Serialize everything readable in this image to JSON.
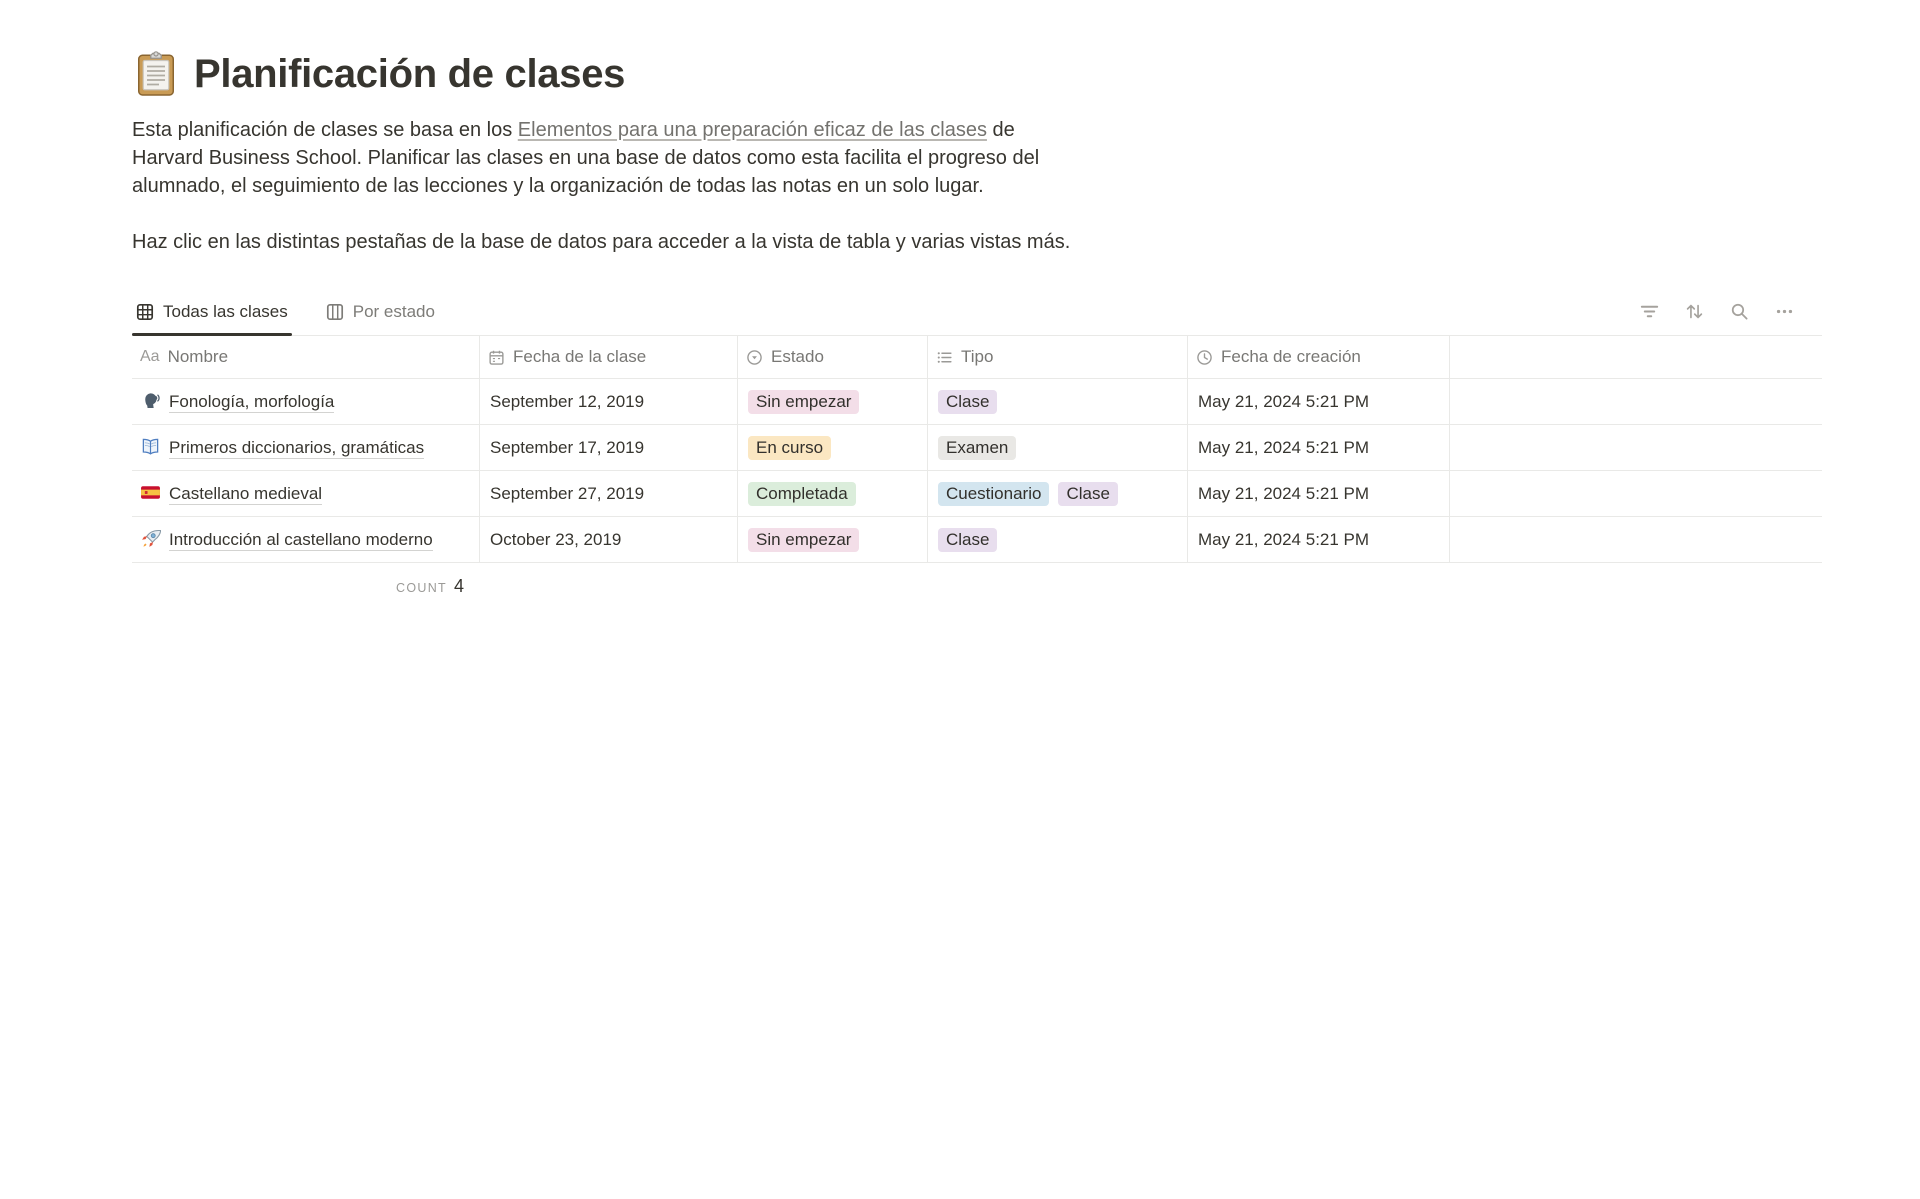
{
  "page": {
    "title": "Planificación de clases",
    "title_icon": "clipboard-emoji",
    "intro": {
      "before_link": "Esta planificación de clases se basa en los ",
      "link_text": "Elementos para una preparación eficaz de las clases",
      "after_link": " de Harvard Business School. Planificar las clases en una base de datos como esta facilita el progreso del alumnado, el seguimiento de las lecciones y la organización de todas las notas en un solo lugar.",
      "second_paragraph": "Haz clic en las distintas pestañas de la base de datos para acceder a la vista de tabla y varias vistas más."
    }
  },
  "tabs": [
    {
      "label": "Todas las clases",
      "icon": "table-view-icon",
      "active": true
    },
    {
      "label": "Por estado",
      "icon": "board-view-icon",
      "active": false
    }
  ],
  "toolbar": {
    "icons": [
      {
        "name": "filter-icon"
      },
      {
        "name": "sort-icon"
      },
      {
        "name": "search-icon"
      },
      {
        "name": "more-icon"
      }
    ]
  },
  "table": {
    "columns": [
      {
        "label": "Nombre",
        "icon": "text-property-icon"
      },
      {
        "label": "Fecha de la clase",
        "icon": "calendar-icon"
      },
      {
        "label": "Estado",
        "icon": "status-icon"
      },
      {
        "label": "Tipo",
        "icon": "list-icon"
      },
      {
        "label": "Fecha de creación",
        "icon": "clock-icon"
      },
      {
        "label": "",
        "icon": ""
      }
    ],
    "rows": [
      {
        "icon": "speaking-head-emoji",
        "name": "Fonología, morfología",
        "class_date": "September 12, 2019",
        "status": {
          "label": "Sin empezar",
          "color": "pink"
        },
        "types": [
          {
            "label": "Clase",
            "color": "purple"
          }
        ],
        "created": "May 21, 2024 5:21 PM"
      },
      {
        "icon": "open-book-emoji",
        "name": "Primeros diccionarios, gramáticas",
        "class_date": "September 17, 2019",
        "status": {
          "label": "En curso",
          "color": "yellow"
        },
        "types": [
          {
            "label": "Examen",
            "color": "gray"
          }
        ],
        "created": "May 21, 2024 5:21 PM"
      },
      {
        "icon": "spain-flag-emoji",
        "name": "Castellano medieval",
        "class_date": "September 27, 2019",
        "status": {
          "label": "Completada",
          "color": "green"
        },
        "types": [
          {
            "label": "Cuestionario",
            "color": "blue"
          },
          {
            "label": "Clase",
            "color": "purple"
          }
        ],
        "created": "May 21, 2024 5:21 PM"
      },
      {
        "icon": "rocket-emoji",
        "name": "Introducción al castellano moderno",
        "class_date": "October 23, 2019",
        "status": {
          "label": "Sin empezar",
          "color": "pink"
        },
        "types": [
          {
            "label": "Clase",
            "color": "purple"
          }
        ],
        "created": "May 21, 2024 5:21 PM"
      }
    ],
    "footer": {
      "count_label": "COUNT",
      "count_value": "4"
    }
  },
  "colors": {
    "badge_pink": "#F3DEE8",
    "badge_yellow": "#FBE7C2",
    "badge_green": "#DBEDDB",
    "badge_purple": "#E8DEEE",
    "badge_gray": "#E9E8E5",
    "badge_blue": "#D3E5EF",
    "text": "#37352F",
    "secondary_text": "#787774",
    "border": "#E9E9E7",
    "active_tab_underline": "#37352F"
  }
}
